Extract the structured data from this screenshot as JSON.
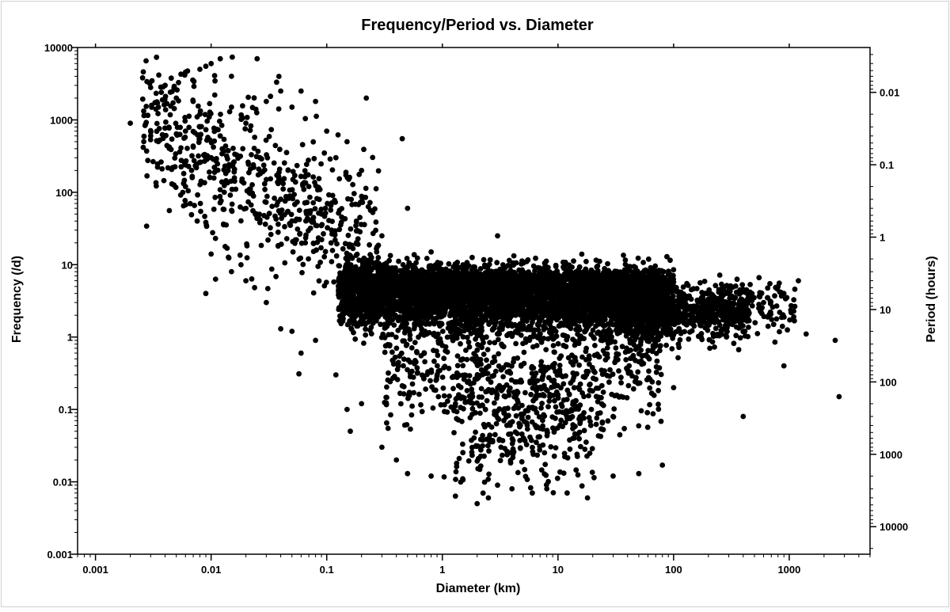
{
  "chart_data": {
    "type": "scatter",
    "title": "Frequency/Period vs. Diameter",
    "xlabel": "Diameter (km)",
    "ylabel": "Frequency (/d)",
    "y2label": "Period (hours)",
    "xscale": "log",
    "yscale": "log",
    "y2scale": "log",
    "xlim": [
      0.0007,
      5000
    ],
    "ylim": [
      0.001,
      10000
    ],
    "x_ticks": [
      "0.001",
      "0.01",
      "0.1",
      "1",
      "10",
      "100",
      "1000"
    ],
    "y_ticks": [
      "0.001",
      "0.01",
      "0.1",
      "1",
      "10",
      "100",
      "1000",
      "10000"
    ],
    "y2_ticks": [
      "0.01",
      "0.1",
      "1",
      "10",
      "100",
      "1000",
      "10000"
    ],
    "grid": false,
    "legend": "none",
    "marker_color": "#000000",
    "series": [
      {
        "points": [
          [
            0.002,
            900
          ],
          [
            0.003,
            2800
          ],
          [
            0.003,
            600
          ],
          [
            0.0035,
            1500
          ],
          [
            0.004,
            3000
          ],
          [
            0.005,
            2000
          ],
          [
            0.006,
            700
          ],
          [
            0.007,
            1800
          ],
          [
            0.008,
            5000
          ],
          [
            0.009,
            5500
          ],
          [
            0.01,
            6000
          ],
          [
            0.012,
            7000
          ],
          [
            0.015,
            4000
          ],
          [
            0.025,
            7000
          ],
          [
            0.008,
            1200
          ],
          [
            0.006,
            120
          ],
          [
            0.008,
            800
          ],
          [
            0.01,
            300
          ],
          [
            0.012,
            600
          ],
          [
            0.015,
            1500
          ],
          [
            0.02,
            900
          ],
          [
            0.03,
            1800
          ],
          [
            0.04,
            2500
          ],
          [
            0.05,
            1500
          ],
          [
            0.06,
            2500
          ],
          [
            0.08,
            1800
          ],
          [
            0.1,
            700
          ],
          [
            0.12,
            300
          ],
          [
            0.15,
            500
          ],
          [
            0.2,
            200
          ],
          [
            0.22,
            2000
          ],
          [
            0.45,
            550
          ],
          [
            0.013,
            100
          ],
          [
            0.02,
            60
          ],
          [
            0.03,
            150
          ],
          [
            0.04,
            80
          ],
          [
            0.05,
            40
          ],
          [
            0.07,
            120
          ],
          [
            0.09,
            50
          ],
          [
            0.11,
            30
          ],
          [
            0.009,
            4
          ],
          [
            0.01,
            14
          ],
          [
            0.015,
            8
          ],
          [
            0.02,
            6
          ],
          [
            0.03,
            3
          ],
          [
            0.04,
            1.3
          ],
          [
            0.05,
            1.2
          ],
          [
            0.06,
            0.6
          ],
          [
            0.08,
            0.9
          ],
          [
            0.12,
            0.3
          ],
          [
            0.15,
            0.1
          ],
          [
            0.2,
            0.12
          ],
          [
            0.16,
            0.05
          ],
          [
            0.3,
            0.03
          ],
          [
            0.4,
            0.02
          ],
          [
            0.5,
            0.013
          ],
          [
            0.8,
            0.012
          ],
          [
            1.5,
            0.011
          ],
          [
            2,
            0.005
          ],
          [
            2.5,
            0.006
          ],
          [
            3,
            0.009
          ],
          [
            4,
            0.008
          ],
          [
            6,
            0.007
          ],
          [
            8,
            0.008
          ],
          [
            12,
            0.007
          ],
          [
            18,
            0.006
          ],
          [
            30,
            0.012
          ],
          [
            50,
            0.013
          ],
          [
            80,
            0.017
          ],
          [
            100,
            0.2
          ],
          [
            110,
            0.8
          ],
          [
            300,
            1.5
          ],
          [
            400,
            0.08
          ],
          [
            900,
            0.4
          ],
          [
            1400,
            1.1
          ],
          [
            2500,
            0.9
          ],
          [
            2700,
            0.15
          ],
          [
            1200,
            6
          ],
          [
            800,
            5
          ],
          [
            600,
            3
          ],
          [
            0.3,
            25
          ],
          [
            0.5,
            60
          ],
          [
            0.8,
            15
          ],
          [
            3,
            25
          ]
        ]
      }
    ]
  }
}
